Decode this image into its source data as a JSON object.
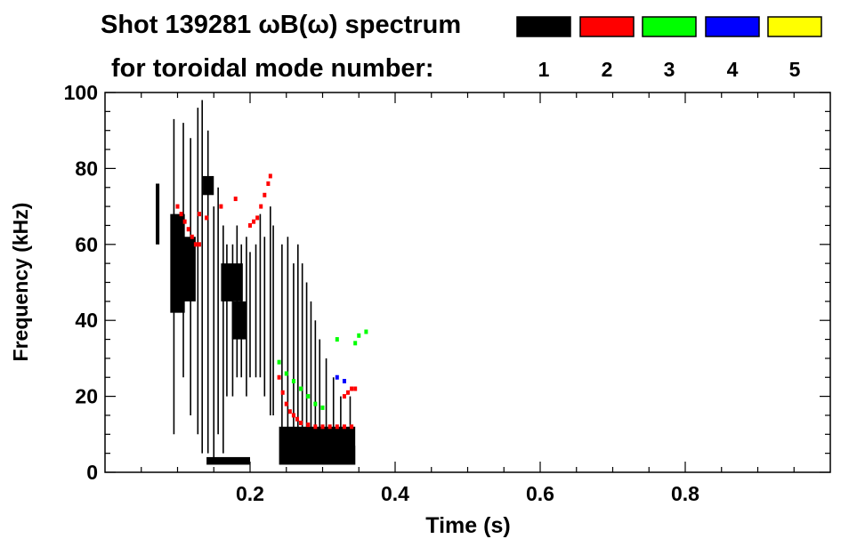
{
  "chart_data": {
    "type": "heatmap",
    "title": "Shot 139281 ωB(ω) spectrum",
    "subtitle": "for toroidal mode number:",
    "xlabel": "Time (s)",
    "ylabel": "Frequency (kHz)",
    "xlim": [
      0,
      1
    ],
    "ylim": [
      0,
      100
    ],
    "x_ticks": [
      0.2,
      0.4,
      0.6,
      0.8
    ],
    "x_tick_labels": [
      "0.2",
      "0.4",
      "0.6",
      "0.8"
    ],
    "y_ticks": [
      0,
      20,
      40,
      60,
      80,
      100
    ],
    "y_tick_labels": [
      "0",
      "20",
      "40",
      "60",
      "80",
      "100"
    ],
    "grid": false,
    "legend_placement": "top-right",
    "legend": [
      {
        "label": "1",
        "color": "#000000"
      },
      {
        "label": "2",
        "color": "#ff0000"
      },
      {
        "label": "3",
        "color": "#00ff00"
      },
      {
        "label": "4",
        "color": "#0000ff"
      },
      {
        "label": "5",
        "color": "#ffff00"
      }
    ],
    "series": [
      {
        "mode": 1,
        "color": "#000000",
        "blobs": [
          {
            "t": [
              0.07,
              0.075
            ],
            "f": [
              60,
              76
            ]
          },
          {
            "t": [
              0.09,
              0.11
            ],
            "f": [
              42,
              68
            ]
          },
          {
            "t": [
              0.105,
              0.125
            ],
            "f": [
              45,
              62
            ]
          },
          {
            "t": [
              0.135,
              0.15
            ],
            "f": [
              73,
              78
            ]
          },
          {
            "t": [
              0.16,
              0.19
            ],
            "f": [
              45,
              55
            ]
          },
          {
            "t": [
              0.175,
              0.195
            ],
            "f": [
              35,
              45
            ]
          },
          {
            "t": [
              0.14,
              0.2
            ],
            "f": [
              2,
              4
            ]
          },
          {
            "t": [
              0.24,
              0.345
            ],
            "f": [
              2,
              12
            ]
          },
          {
            "t": [
              0.3,
              0.345
            ],
            "f": [
              2,
              7
            ]
          }
        ],
        "streaks": [
          {
            "t": 0.095,
            "f": [
              10,
              93
            ]
          },
          {
            "t": 0.108,
            "f": [
              25,
              92
            ]
          },
          {
            "t": 0.118,
            "f": [
              15,
              88
            ]
          },
          {
            "t": 0.128,
            "f": [
              10,
              96
            ]
          },
          {
            "t": 0.134,
            "f": [
              5,
              98
            ]
          },
          {
            "t": 0.142,
            "f": [
              5,
              90
            ]
          },
          {
            "t": 0.15,
            "f": [
              3,
              70
            ]
          },
          {
            "t": 0.156,
            "f": [
              10,
              75
            ]
          },
          {
            "t": 0.163,
            "f": [
              5,
              65
            ]
          },
          {
            "t": 0.168,
            "f": [
              20,
              60
            ]
          },
          {
            "t": 0.176,
            "f": [
              20,
              60
            ]
          },
          {
            "t": 0.182,
            "f": [
              25,
              65
            ]
          },
          {
            "t": 0.188,
            "f": [
              25,
              60
            ]
          },
          {
            "t": 0.195,
            "f": [
              20,
              62
            ]
          },
          {
            "t": 0.2,
            "f": [
              25,
              58
            ]
          },
          {
            "t": 0.208,
            "f": [
              25,
              60
            ]
          },
          {
            "t": 0.214,
            "f": [
              25,
              68
            ]
          },
          {
            "t": 0.22,
            "f": [
              20,
              62
            ]
          },
          {
            "t": 0.228,
            "f": [
              15,
              70
            ]
          },
          {
            "t": 0.232,
            "f": [
              15,
              65
            ]
          },
          {
            "t": 0.244,
            "f": [
              10,
              60
            ]
          },
          {
            "t": 0.252,
            "f": [
              10,
              62
            ]
          },
          {
            "t": 0.26,
            "f": [
              10,
              55
            ]
          },
          {
            "t": 0.266,
            "f": [
              10,
              60
            ]
          },
          {
            "t": 0.272,
            "f": [
              10,
              55
            ]
          },
          {
            "t": 0.278,
            "f": [
              10,
              50
            ]
          },
          {
            "t": 0.284,
            "f": [
              10,
              45
            ]
          },
          {
            "t": 0.29,
            "f": [
              10,
              40
            ]
          },
          {
            "t": 0.296,
            "f": [
              10,
              35
            ]
          },
          {
            "t": 0.305,
            "f": [
              8,
              30
            ]
          },
          {
            "t": 0.315,
            "f": [
              8,
              25
            ]
          },
          {
            "t": 0.325,
            "f": [
              8,
              20
            ]
          },
          {
            "t": 0.338,
            "f": [
              8,
              20
            ]
          }
        ]
      },
      {
        "mode": 2,
        "color": "#ff0000",
        "points": [
          [
            0.1,
            70
          ],
          [
            0.105,
            68
          ],
          [
            0.11,
            66
          ],
          [
            0.115,
            64
          ],
          [
            0.12,
            62
          ],
          [
            0.125,
            60
          ],
          [
            0.13,
            60
          ],
          [
            0.2,
            65
          ],
          [
            0.205,
            66
          ],
          [
            0.21,
            67
          ],
          [
            0.215,
            70
          ],
          [
            0.22,
            73
          ],
          [
            0.225,
            76
          ],
          [
            0.228,
            78
          ],
          [
            0.24,
            25
          ],
          [
            0.245,
            21
          ],
          [
            0.25,
            18
          ],
          [
            0.255,
            16
          ],
          [
            0.26,
            15
          ],
          [
            0.265,
            14
          ],
          [
            0.27,
            13
          ],
          [
            0.28,
            12.5
          ],
          [
            0.29,
            12
          ],
          [
            0.3,
            12
          ],
          [
            0.31,
            12
          ],
          [
            0.32,
            12
          ],
          [
            0.33,
            12
          ],
          [
            0.34,
            12
          ],
          [
            0.33,
            20
          ],
          [
            0.335,
            21
          ],
          [
            0.34,
            22
          ],
          [
            0.345,
            22
          ],
          [
            0.13,
            68
          ],
          [
            0.14,
            67
          ],
          [
            0.16,
            70
          ],
          [
            0.18,
            72
          ]
        ]
      },
      {
        "mode": 3,
        "color": "#00ff00",
        "points": [
          [
            0.24,
            29
          ],
          [
            0.25,
            26
          ],
          [
            0.26,
            24
          ],
          [
            0.27,
            22
          ],
          [
            0.28,
            20
          ],
          [
            0.29,
            18
          ],
          [
            0.3,
            17
          ],
          [
            0.32,
            35
          ],
          [
            0.345,
            34
          ],
          [
            0.35,
            36
          ],
          [
            0.36,
            37
          ]
        ]
      },
      {
        "mode": 4,
        "color": "#0000ff",
        "points": [
          [
            0.32,
            25
          ],
          [
            0.33,
            24
          ]
        ]
      },
      {
        "mode": 5,
        "color": "#ffff00",
        "points": []
      }
    ]
  }
}
